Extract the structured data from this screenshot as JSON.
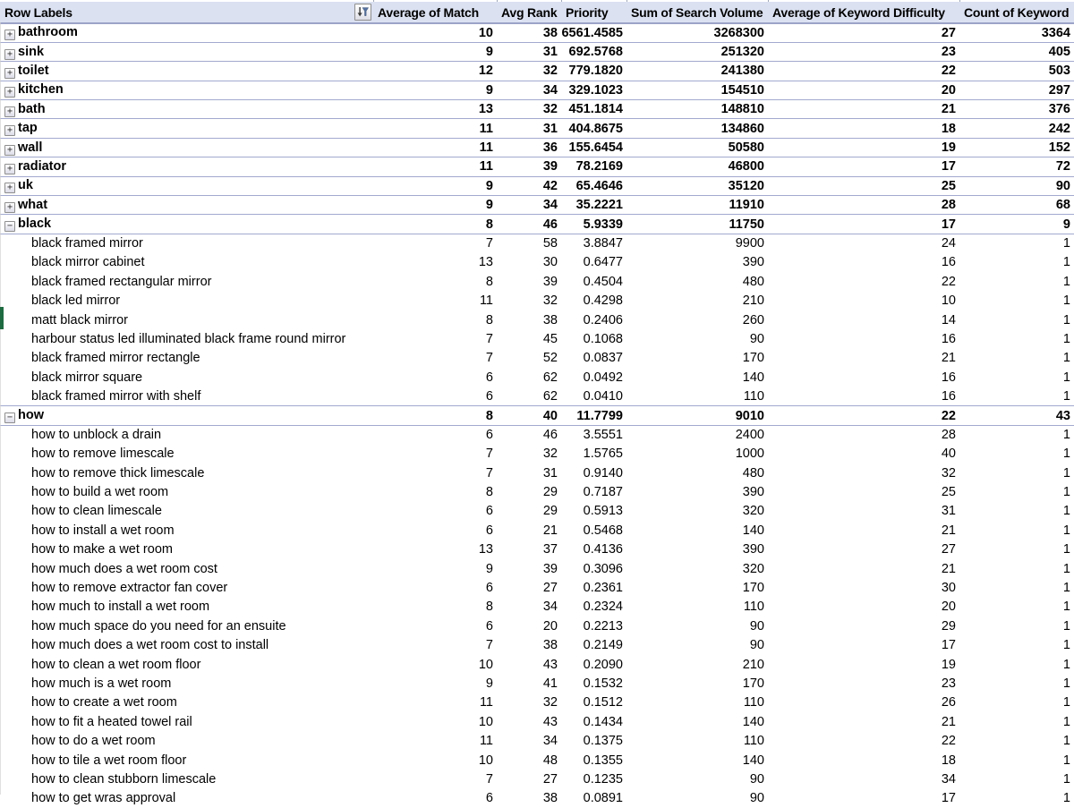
{
  "table": {
    "columns": [
      {
        "label": "Row Labels"
      },
      {
        "label": "Average of Match"
      },
      {
        "label": "Avg Rank"
      },
      {
        "label": "Priority"
      },
      {
        "label": "Sum of Search Volume"
      },
      {
        "label": "Average of Keyword Difficulty"
      },
      {
        "label": "Count of Keyword"
      }
    ],
    "rows": [
      {
        "label": "bathroom",
        "type": "group",
        "expanded": false,
        "values": [
          "10",
          "38",
          "6561.4585",
          "3268300",
          "27",
          "3364"
        ]
      },
      {
        "label": "sink",
        "type": "group",
        "expanded": false,
        "values": [
          "9",
          "31",
          "692.5768",
          "251320",
          "23",
          "405"
        ]
      },
      {
        "label": "toilet",
        "type": "group",
        "expanded": false,
        "values": [
          "12",
          "32",
          "779.1820",
          "241380",
          "22",
          "503"
        ]
      },
      {
        "label": "kitchen",
        "type": "group",
        "expanded": false,
        "values": [
          "9",
          "34",
          "329.1023",
          "154510",
          "20",
          "297"
        ]
      },
      {
        "label": "bath",
        "type": "group",
        "expanded": false,
        "values": [
          "13",
          "32",
          "451.1814",
          "148810",
          "21",
          "376"
        ]
      },
      {
        "label": "tap",
        "type": "group",
        "expanded": false,
        "values": [
          "11",
          "31",
          "404.8675",
          "134860",
          "18",
          "242"
        ]
      },
      {
        "label": "wall",
        "type": "group",
        "expanded": false,
        "values": [
          "11",
          "36",
          "155.6454",
          "50580",
          "19",
          "152"
        ]
      },
      {
        "label": "radiator",
        "type": "group",
        "expanded": false,
        "values": [
          "11",
          "39",
          "78.2169",
          "46800",
          "17",
          "72"
        ]
      },
      {
        "label": "uk",
        "type": "group",
        "expanded": false,
        "values": [
          "9",
          "42",
          "65.4646",
          "35120",
          "25",
          "90"
        ]
      },
      {
        "label": "what",
        "type": "group",
        "expanded": false,
        "values": [
          "9",
          "34",
          "35.2221",
          "11910",
          "28",
          "68"
        ]
      },
      {
        "label": "black",
        "type": "group",
        "expanded": true,
        "values": [
          "8",
          "46",
          "5.9339",
          "11750",
          "17",
          "9"
        ]
      },
      {
        "label": "black framed mirror",
        "type": "child",
        "values": [
          "7",
          "58",
          "3.8847",
          "9900",
          "24",
          "1"
        ]
      },
      {
        "label": "black mirror cabinet",
        "type": "child",
        "values": [
          "13",
          "30",
          "0.6477",
          "390",
          "16",
          "1"
        ]
      },
      {
        "label": "black framed rectangular mirror",
        "type": "child",
        "values": [
          "8",
          "39",
          "0.4504",
          "480",
          "22",
          "1"
        ]
      },
      {
        "label": "black led mirror",
        "type": "child",
        "values": [
          "11",
          "32",
          "0.4298",
          "210",
          "10",
          "1"
        ]
      },
      {
        "label": "matt black mirror",
        "type": "child",
        "values": [
          "8",
          "38",
          "0.2406",
          "260",
          "14",
          "1"
        ]
      },
      {
        "label": "harbour status led illuminated black frame round mirror",
        "type": "child",
        "values": [
          "7",
          "45",
          "0.1068",
          "90",
          "16",
          "1"
        ]
      },
      {
        "label": "black framed mirror rectangle",
        "type": "child",
        "values": [
          "7",
          "52",
          "0.0837",
          "170",
          "21",
          "1"
        ]
      },
      {
        "label": "black mirror square",
        "type": "child",
        "values": [
          "6",
          "62",
          "0.0492",
          "140",
          "16",
          "1"
        ]
      },
      {
        "label": "black framed mirror with shelf",
        "type": "child",
        "values": [
          "6",
          "62",
          "0.0410",
          "110",
          "16",
          "1"
        ]
      },
      {
        "label": "how",
        "type": "group",
        "expanded": true,
        "values": [
          "8",
          "40",
          "11.7799",
          "9010",
          "22",
          "43"
        ]
      },
      {
        "label": "how to unblock a drain",
        "type": "child",
        "values": [
          "6",
          "46",
          "3.5551",
          "2400",
          "28",
          "1"
        ]
      },
      {
        "label": "how to remove limescale",
        "type": "child",
        "values": [
          "7",
          "32",
          "1.5765",
          "1000",
          "40",
          "1"
        ]
      },
      {
        "label": "how to remove thick limescale",
        "type": "child",
        "values": [
          "7",
          "31",
          "0.9140",
          "480",
          "32",
          "1"
        ]
      },
      {
        "label": "how to build a wet room",
        "type": "child",
        "values": [
          "8",
          "29",
          "0.7187",
          "390",
          "25",
          "1"
        ]
      },
      {
        "label": "how to clean limescale",
        "type": "child",
        "values": [
          "6",
          "29",
          "0.5913",
          "320",
          "31",
          "1"
        ]
      },
      {
        "label": "how to install a wet room",
        "type": "child",
        "values": [
          "6",
          "21",
          "0.5468",
          "140",
          "21",
          "1"
        ]
      },
      {
        "label": "how to make a wet room",
        "type": "child",
        "values": [
          "13",
          "37",
          "0.4136",
          "390",
          "27",
          "1"
        ]
      },
      {
        "label": "how much does a wet room cost",
        "type": "child",
        "values": [
          "9",
          "39",
          "0.3096",
          "320",
          "21",
          "1"
        ]
      },
      {
        "label": "how to remove extractor fan cover",
        "type": "child",
        "values": [
          "6",
          "27",
          "0.2361",
          "170",
          "30",
          "1"
        ]
      },
      {
        "label": "how much to install a wet room",
        "type": "child",
        "values": [
          "8",
          "34",
          "0.2324",
          "110",
          "20",
          "1"
        ]
      },
      {
        "label": "how much space do you need for an ensuite",
        "type": "child",
        "values": [
          "6",
          "20",
          "0.2213",
          "90",
          "29",
          "1"
        ]
      },
      {
        "label": "how much does a wet room cost to install",
        "type": "child",
        "values": [
          "7",
          "38",
          "0.2149",
          "90",
          "17",
          "1"
        ]
      },
      {
        "label": "how to clean a wet room floor",
        "type": "child",
        "values": [
          "10",
          "43",
          "0.2090",
          "210",
          "19",
          "1"
        ]
      },
      {
        "label": "how much is a wet room",
        "type": "child",
        "values": [
          "9",
          "41",
          "0.1532",
          "170",
          "23",
          "1"
        ]
      },
      {
        "label": "how to create a wet room",
        "type": "child",
        "values": [
          "11",
          "32",
          "0.1512",
          "110",
          "26",
          "1"
        ]
      },
      {
        "label": "how to fit a heated towel rail",
        "type": "child",
        "values": [
          "10",
          "43",
          "0.1434",
          "140",
          "21",
          "1"
        ]
      },
      {
        "label": "how to do a wet room",
        "type": "child",
        "values": [
          "11",
          "34",
          "0.1375",
          "110",
          "22",
          "1"
        ]
      },
      {
        "label": "how to tile a wet room floor",
        "type": "child",
        "values": [
          "10",
          "48",
          "0.1355",
          "140",
          "18",
          "1"
        ]
      },
      {
        "label": "how to clean stubborn limescale",
        "type": "child",
        "values": [
          "7",
          "27",
          "0.1235",
          "90",
          "34",
          "1"
        ]
      },
      {
        "label": "how to get wras approval",
        "type": "child",
        "values": [
          "6",
          "38",
          "0.0891",
          "90",
          "17",
          "1"
        ]
      }
    ]
  },
  "icons": {
    "filter_sort_icon": "sort-descending-with-funnel",
    "expand_glyph": "+",
    "collapse_glyph": "−"
  },
  "colors": {
    "header_fill": "#DBE1F1",
    "header_border": "#9CA3C9",
    "row_border": "#A2A9CF",
    "selection_green": "#1E6B41",
    "funnel_blue": "#54719E"
  }
}
